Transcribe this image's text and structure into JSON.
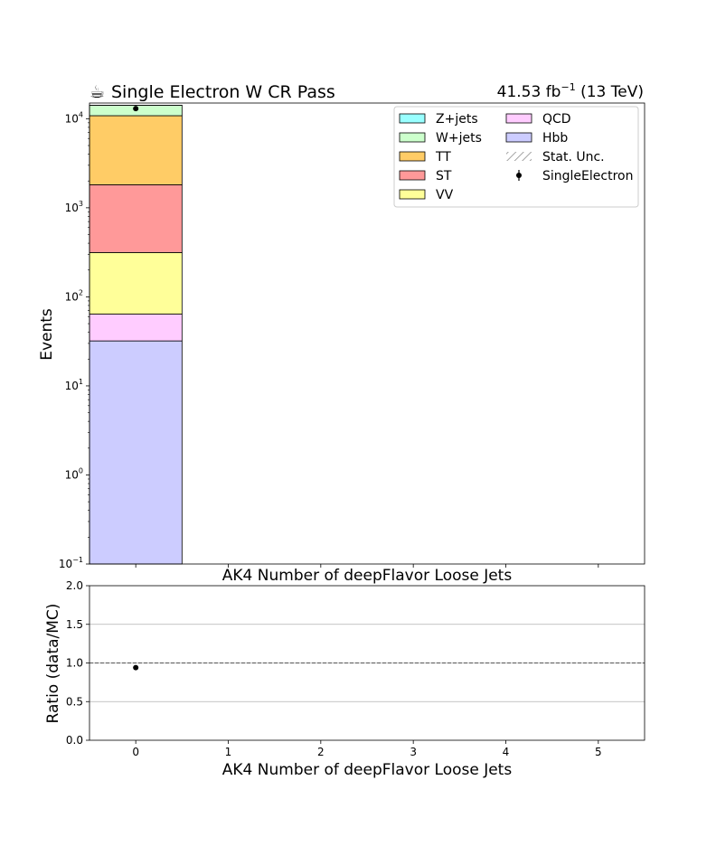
{
  "header": {
    "title_icon": "☕",
    "title": "Single Electron W CR Pass",
    "lumi_value": "41.53 fb",
    "lumi_exp": "−1",
    "lumi_energy": " (13 TeV)"
  },
  "chart_data": [
    {
      "type": "bar",
      "subtype": "stacked-histogram",
      "ylabel": "Events",
      "xlabel": "AK4 Number of deepFlavor Loose Jets",
      "yscale": "log",
      "ylim": [
        0.1,
        15000
      ],
      "xlim": [
        -0.5,
        5.5
      ],
      "categories": [
        "0",
        "1",
        "2",
        "3",
        "4",
        "5"
      ],
      "y_ticks": [
        {
          "base": "10",
          "exp": "−1",
          "value": 0.1
        },
        {
          "base": "10",
          "exp": "0",
          "value": 1
        },
        {
          "base": "10",
          "exp": "1",
          "value": 10
        },
        {
          "base": "10",
          "exp": "2",
          "value": 100
        },
        {
          "base": "10",
          "exp": "3",
          "value": 1000
        },
        {
          "base": "10",
          "exp": "4",
          "value": 10000
        }
      ],
      "series": [
        {
          "name": "Hbb",
          "color": "#ccccff",
          "values": [
            32,
            0,
            0,
            0,
            0,
            0
          ]
        },
        {
          "name": "QCD",
          "color": "#ffccff",
          "values": [
            32,
            0,
            0,
            0,
            0,
            0
          ]
        },
        {
          "name": "VV",
          "color": "#ffff99",
          "values": [
            250,
            0,
            0,
            0,
            0,
            0
          ]
        },
        {
          "name": "ST",
          "color": "#ff9999",
          "values": [
            1500,
            0,
            0,
            0,
            0,
            0
          ]
        },
        {
          "name": "TT",
          "color": "#ffcc66",
          "values": [
            9000,
            0,
            0,
            0,
            0,
            0
          ]
        },
        {
          "name": "W+jets",
          "color": "#ccffcc",
          "values": [
            3300,
            0,
            0,
            0,
            0,
            0
          ]
        },
        {
          "name": "Z+jets",
          "color": "#99ffff",
          "values": [
            30,
            0,
            0,
            0,
            0,
            0
          ]
        }
      ],
      "data_series": {
        "name": "SingleElectron",
        "x": [
          0
        ],
        "y": [
          13000
        ]
      },
      "legend": {
        "position": "top-right",
        "columns": [
          [
            {
              "label": "Z+jets",
              "kind": "box",
              "color": "#99ffff"
            },
            {
              "label": "W+jets",
              "kind": "box",
              "color": "#ccffcc"
            },
            {
              "label": "TT",
              "kind": "box",
              "color": "#ffcc66"
            },
            {
              "label": "ST",
              "kind": "box",
              "color": "#ff9999"
            },
            {
              "label": "VV",
              "kind": "box",
              "color": "#ffff99"
            }
          ],
          [
            {
              "label": "QCD",
              "kind": "box",
              "color": "#ffccff"
            },
            {
              "label": "Hbb",
              "kind": "box",
              "color": "#ccccff"
            },
            {
              "label": "Stat. Unc.",
              "kind": "hatch",
              "color": "#888888"
            },
            {
              "label": "SingleElectron",
              "kind": "marker",
              "color": "#000000"
            }
          ]
        ]
      }
    },
    {
      "type": "scatter",
      "ylabel": "Ratio (data/MC)",
      "xlabel": "AK4 Number of deepFlavor Loose Jets",
      "xlim": [
        -0.5,
        5.5
      ],
      "ylim": [
        0.0,
        2.0
      ],
      "x_ticks": [
        "0",
        "1",
        "2",
        "3",
        "4",
        "5"
      ],
      "y_ticks": [
        "0.0",
        "0.5",
        "1.0",
        "1.5",
        "2.0"
      ],
      "grid": "horizontal",
      "reference_line": 1.0,
      "x": [
        0
      ],
      "y": [
        0.94
      ]
    }
  ]
}
